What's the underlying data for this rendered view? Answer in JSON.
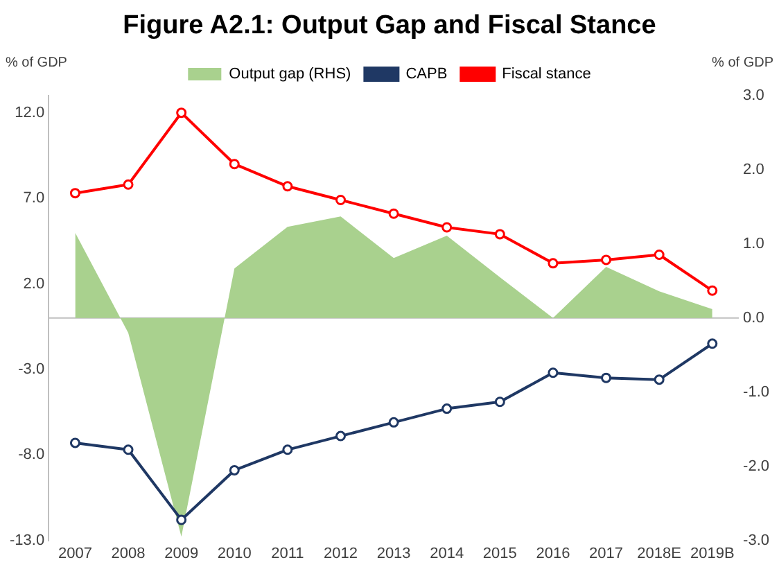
{
  "chart_data": {
    "type": "line",
    "title": "Figure A2.1: Output Gap and Fiscal Stance",
    "ylabel": "% of GDP",
    "y2label": "% of GDP",
    "categories": [
      "2007",
      "2008",
      "2009",
      "2010",
      "2011",
      "2012",
      "2013",
      "2014",
      "2015",
      "2016",
      "2017",
      "2018E",
      "2019B"
    ],
    "series": [
      {
        "name": "Output gap (RHS)",
        "type": "area",
        "axis": "y2",
        "color": "#a9d18e",
        "values": [
          1.15,
          -0.2,
          -2.95,
          0.67,
          1.23,
          1.37,
          0.81,
          1.11,
          0.55,
          0,
          0.69,
          0.36,
          0.12
        ]
      },
      {
        "name": "CAPB",
        "color": "#1f3864",
        "marker": "circle",
        "values": [
          -7.3,
          -7.7,
          -11.8,
          -8.9,
          -7.7,
          -6.9,
          -6.1,
          -5.3,
          -4.9,
          -3.2,
          -3.5,
          -3.6,
          -1.5
        ]
      },
      {
        "name": "Fiscal stance",
        "color": "#ff0000",
        "marker": "circle",
        "values": [
          7.3,
          7.8,
          12.0,
          9.0,
          7.7,
          6.9,
          6.1,
          5.3,
          4.9,
          3.2,
          3.4,
          3.7,
          1.6
        ]
      }
    ],
    "ylim": [
      -13,
      13
    ],
    "yticks": [
      {
        "value": -13,
        "label": "-13.0"
      },
      {
        "value": -8,
        "label": "-8.0"
      },
      {
        "value": -3,
        "label": "-3.0"
      },
      {
        "value": 2,
        "label": "2.0"
      },
      {
        "value": 7,
        "label": "7.0"
      },
      {
        "value": 12,
        "label": "12.0"
      }
    ],
    "y2lim": [
      -3,
      3
    ],
    "y2ticks": [
      {
        "value": -3,
        "label": "-3.0"
      },
      {
        "value": -2,
        "label": "-2.0"
      },
      {
        "value": -1,
        "label": "-1.0"
      },
      {
        "value": 0,
        "label": "0.0"
      },
      {
        "value": 1,
        "label": "1.0"
      },
      {
        "value": 2,
        "label": "2.0"
      },
      {
        "value": 3,
        "label": "3.0"
      }
    ],
    "ref_lines": [
      {
        "axis": "y",
        "value": 0,
        "color": "#bfbfbf"
      }
    ],
    "grid": false,
    "legend": "top"
  }
}
